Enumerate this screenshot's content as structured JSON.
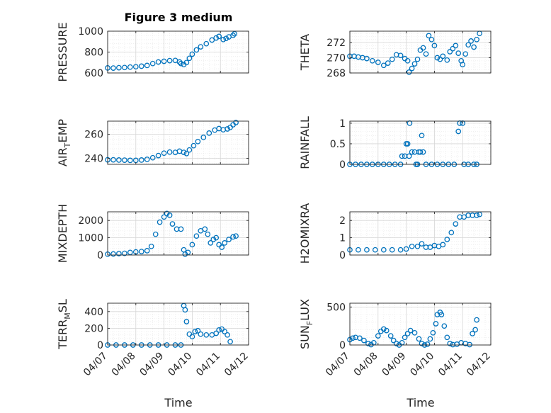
{
  "figure": {
    "title": "Figure 3 medium",
    "xlabel": "Time",
    "x_ticks": [
      "04/07",
      "04/08",
      "04/09",
      "04/10",
      "04/11",
      "04/12"
    ]
  },
  "colors": {
    "marker": "#0072BD",
    "axis": "#262626",
    "grid_major": "#d6d6d6",
    "grid_minor": "#e7e7e7"
  },
  "chart_data": [
    {
      "type": "scatter",
      "id": "pressure",
      "ylabel_main": "PRESSURE",
      "ylabel_sub": "",
      "ylabel_tail": "",
      "ylim": [
        600,
        1000
      ],
      "yticks": [
        600,
        800,
        1000
      ],
      "ytick_labels": [
        "600",
        "800",
        "1000"
      ],
      "grid": true,
      "points": [
        [
          7.0,
          648
        ],
        [
          7.2,
          647
        ],
        [
          7.4,
          650
        ],
        [
          7.6,
          652
        ],
        [
          7.8,
          656
        ],
        [
          8.0,
          660
        ],
        [
          8.2,
          665
        ],
        [
          8.4,
          672
        ],
        [
          8.6,
          690
        ],
        [
          8.8,
          705
        ],
        [
          9.0,
          712
        ],
        [
          9.2,
          718
        ],
        [
          9.4,
          720
        ],
        [
          9.55,
          705
        ],
        [
          9.6,
          690
        ],
        [
          9.7,
          680
        ],
        [
          9.8,
          700
        ],
        [
          9.9,
          740
        ],
        [
          10.0,
          780
        ],
        [
          10.15,
          820
        ],
        [
          10.3,
          850
        ],
        [
          10.5,
          880
        ],
        [
          10.7,
          915
        ],
        [
          10.85,
          935
        ],
        [
          10.95,
          950
        ],
        [
          11.1,
          920
        ],
        [
          11.2,
          930
        ],
        [
          11.3,
          945
        ],
        [
          11.45,
          960
        ],
        [
          11.5,
          975
        ]
      ]
    },
    {
      "type": "scatter",
      "id": "theta",
      "ylabel_main": "THETA",
      "ylabel_sub": "",
      "ylabel_tail": "",
      "ylim": [
        268,
        273.5
      ],
      "yticks": [
        268,
        270,
        272
      ],
      "ytick_labels": [
        "268",
        "270",
        "272"
      ],
      "grid": true,
      "points": [
        [
          7.0,
          270.2
        ],
        [
          7.15,
          270.2
        ],
        [
          7.3,
          270.1
        ],
        [
          7.45,
          270.0
        ],
        [
          7.6,
          269.9
        ],
        [
          7.8,
          269.6
        ],
        [
          8.0,
          269.4
        ],
        [
          8.2,
          269.0
        ],
        [
          8.35,
          269.3
        ],
        [
          8.5,
          269.8
        ],
        [
          8.65,
          270.4
        ],
        [
          8.8,
          270.3
        ],
        [
          8.95,
          269.9
        ],
        [
          9.05,
          269.6
        ],
        [
          9.1,
          268.1
        ],
        [
          9.2,
          268.6
        ],
        [
          9.3,
          269.2
        ],
        [
          9.4,
          269.8
        ],
        [
          9.5,
          271.0
        ],
        [
          9.6,
          271.3
        ],
        [
          9.7,
          270.5
        ],
        [
          9.8,
          272.9
        ],
        [
          9.9,
          272.4
        ],
        [
          10.0,
          271.6
        ],
        [
          10.1,
          270.0
        ],
        [
          10.2,
          269.8
        ],
        [
          10.3,
          270.2
        ],
        [
          10.45,
          269.7
        ],
        [
          10.55,
          270.8
        ],
        [
          10.65,
          271.2
        ],
        [
          10.75,
          271.6
        ],
        [
          10.85,
          270.6
        ],
        [
          10.95,
          269.6
        ],
        [
          11.0,
          269.1
        ],
        [
          11.1,
          270.5
        ],
        [
          11.2,
          271.7
        ],
        [
          11.3,
          272.2
        ],
        [
          11.4,
          271.4
        ],
        [
          11.5,
          272.4
        ],
        [
          11.6,
          273.2
        ]
      ]
    },
    {
      "type": "scatter",
      "id": "air-temp",
      "ylabel_main": "AIR",
      "ylabel_sub": "T",
      "ylabel_tail": "EMP",
      "ylim": [
        235,
        271
      ],
      "yticks": [
        240,
        260
      ],
      "ytick_labels": [
        "240",
        "260"
      ],
      "grid": true,
      "points": [
        [
          7.0,
          238.8
        ],
        [
          7.2,
          238.8
        ],
        [
          7.4,
          238.6
        ],
        [
          7.6,
          238.5
        ],
        [
          7.8,
          238.3
        ],
        [
          8.0,
          238.3
        ],
        [
          8.2,
          238.6
        ],
        [
          8.4,
          239.2
        ],
        [
          8.6,
          240.5
        ],
        [
          8.8,
          242.3
        ],
        [
          9.0,
          244.3
        ],
        [
          9.2,
          245.2
        ],
        [
          9.4,
          245.0
        ],
        [
          9.55,
          246.0
        ],
        [
          9.7,
          245.0
        ],
        [
          9.8,
          244.0
        ],
        [
          9.9,
          247.0
        ],
        [
          10.05,
          250.5
        ],
        [
          10.2,
          254.0
        ],
        [
          10.4,
          257.5
        ],
        [
          10.6,
          261.0
        ],
        [
          10.8,
          263.5
        ],
        [
          10.95,
          264.8
        ],
        [
          11.1,
          263.8
        ],
        [
          11.25,
          264.5
        ],
        [
          11.35,
          265.8
        ],
        [
          11.45,
          268.0
        ],
        [
          11.55,
          269.8
        ]
      ]
    },
    {
      "type": "scatter",
      "id": "rainfall",
      "ylabel_main": "RAINFALL",
      "ylabel_sub": "",
      "ylabel_tail": "",
      "ylim": [
        0,
        1.05
      ],
      "yticks": [
        0,
        0.5,
        1
      ],
      "ytick_labels": [
        "0",
        "0.5",
        "1"
      ],
      "grid": true,
      "points": [
        [
          7.0,
          0
        ],
        [
          7.2,
          0
        ],
        [
          7.4,
          0
        ],
        [
          7.6,
          0
        ],
        [
          7.8,
          0
        ],
        [
          8.0,
          0
        ],
        [
          8.2,
          0
        ],
        [
          8.4,
          0
        ],
        [
          8.6,
          0
        ],
        [
          8.8,
          0
        ],
        [
          8.85,
          0.2
        ],
        [
          8.95,
          0.2
        ],
        [
          9.0,
          0.5
        ],
        [
          9.05,
          0.5
        ],
        [
          9.1,
          0.2
        ],
        [
          9.12,
          1.0
        ],
        [
          9.2,
          0.3
        ],
        [
          9.3,
          0.3
        ],
        [
          9.35,
          0.0
        ],
        [
          9.4,
          0.0
        ],
        [
          9.45,
          0.3
        ],
        [
          9.5,
          0.3
        ],
        [
          9.55,
          0.7
        ],
        [
          9.6,
          0.3
        ],
        [
          9.7,
          0
        ],
        [
          9.9,
          0
        ],
        [
          10.1,
          0
        ],
        [
          10.3,
          0
        ],
        [
          10.5,
          0
        ],
        [
          10.7,
          0
        ],
        [
          10.85,
          0.8
        ],
        [
          10.9,
          1.0
        ],
        [
          11.0,
          1.0
        ],
        [
          11.05,
          0
        ],
        [
          11.2,
          0
        ],
        [
          11.4,
          0
        ],
        [
          11.5,
          0
        ]
      ]
    },
    {
      "type": "scatter",
      "id": "mixdepth",
      "ylabel_main": "MIXDEPTH",
      "ylabel_sub": "",
      "ylabel_tail": "",
      "ylim": [
        0,
        2500
      ],
      "yticks": [
        0,
        1000,
        2000
      ],
      "ytick_labels": [
        "0",
        "1000",
        "2000"
      ],
      "grid": true,
      "points": [
        [
          7.0,
          50
        ],
        [
          7.2,
          60
        ],
        [
          7.4,
          80
        ],
        [
          7.6,
          100
        ],
        [
          7.8,
          150
        ],
        [
          8.0,
          180
        ],
        [
          8.2,
          200
        ],
        [
          8.4,
          250
        ],
        [
          8.55,
          500
        ],
        [
          8.7,
          1200
        ],
        [
          8.85,
          1900
        ],
        [
          9.0,
          2200
        ],
        [
          9.1,
          2400
        ],
        [
          9.2,
          2300
        ],
        [
          9.3,
          1800
        ],
        [
          9.45,
          1500
        ],
        [
          9.6,
          1500
        ],
        [
          9.7,
          300
        ],
        [
          9.75,
          50
        ],
        [
          9.85,
          150
        ],
        [
          10.0,
          600
        ],
        [
          10.15,
          1100
        ],
        [
          10.3,
          1400
        ],
        [
          10.45,
          1500
        ],
        [
          10.55,
          1200
        ],
        [
          10.65,
          700
        ],
        [
          10.75,
          900
        ],
        [
          10.85,
          1000
        ],
        [
          10.95,
          600
        ],
        [
          11.05,
          450
        ],
        [
          11.15,
          700
        ],
        [
          11.3,
          900
        ],
        [
          11.45,
          1050
        ],
        [
          11.55,
          1100
        ]
      ]
    },
    {
      "type": "scatter",
      "id": "h2omixra",
      "ylabel_main": "H2OMIXRA",
      "ylabel_sub": "",
      "ylabel_tail": "",
      "ylim": [
        0,
        2.5
      ],
      "yticks": [
        0,
        1,
        2
      ],
      "ytick_labels": [
        "0",
        "1",
        "2"
      ],
      "grid": true,
      "points": [
        [
          7.0,
          0.3
        ],
        [
          7.3,
          0.3
        ],
        [
          7.6,
          0.3
        ],
        [
          7.9,
          0.3
        ],
        [
          8.2,
          0.3
        ],
        [
          8.5,
          0.3
        ],
        [
          8.8,
          0.3
        ],
        [
          9.0,
          0.35
        ],
        [
          9.2,
          0.5
        ],
        [
          9.4,
          0.5
        ],
        [
          9.55,
          0.65
        ],
        [
          9.7,
          0.45
        ],
        [
          9.85,
          0.45
        ],
        [
          10.0,
          0.55
        ],
        [
          10.15,
          0.5
        ],
        [
          10.3,
          0.6
        ],
        [
          10.45,
          0.9
        ],
        [
          10.6,
          1.3
        ],
        [
          10.75,
          1.8
        ],
        [
          10.9,
          2.2
        ],
        [
          11.05,
          2.2
        ],
        [
          11.2,
          2.3
        ],
        [
          11.35,
          2.3
        ],
        [
          11.5,
          2.3
        ],
        [
          11.6,
          2.35
        ]
      ]
    },
    {
      "type": "scatter",
      "id": "terr-msl",
      "ylabel_main": "TERR",
      "ylabel_sub": "M",
      "ylabel_tail": "SL",
      "ylim": [
        0,
        500
      ],
      "yticks": [
        0,
        200,
        400
      ],
      "ytick_labels": [
        "0",
        "200",
        "400"
      ],
      "grid": true,
      "points": [
        [
          7.0,
          0
        ],
        [
          7.3,
          0
        ],
        [
          7.6,
          0
        ],
        [
          7.9,
          0
        ],
        [
          8.2,
          0
        ],
        [
          8.5,
          0
        ],
        [
          8.8,
          0
        ],
        [
          9.1,
          0
        ],
        [
          9.4,
          0
        ],
        [
          9.6,
          0
        ],
        [
          9.7,
          470
        ],
        [
          9.75,
          420
        ],
        [
          9.8,
          280
        ],
        [
          9.9,
          130
        ],
        [
          10.0,
          100
        ],
        [
          10.1,
          160
        ],
        [
          10.2,
          170
        ],
        [
          10.3,
          130
        ],
        [
          10.5,
          120
        ],
        [
          10.7,
          120
        ],
        [
          10.85,
          140
        ],
        [
          10.95,
          180
        ],
        [
          11.05,
          190
        ],
        [
          11.15,
          160
        ],
        [
          11.25,
          120
        ],
        [
          11.35,
          40
        ]
      ]
    },
    {
      "type": "scatter",
      "id": "sun-flux",
      "ylabel_main": "SUN",
      "ylabel_sub": "F",
      "ylabel_tail": "LUX",
      "ylim": [
        0,
        550
      ],
      "yticks": [
        0,
        500
      ],
      "ytick_labels": [
        "0",
        "500"
      ],
      "grid": true,
      "points": [
        [
          7.0,
          70
        ],
        [
          7.1,
          90
        ],
        [
          7.2,
          100
        ],
        [
          7.35,
          90
        ],
        [
          7.5,
          60
        ],
        [
          7.65,
          20
        ],
        [
          7.75,
          5
        ],
        [
          7.85,
          30
        ],
        [
          8.0,
          120
        ],
        [
          8.1,
          180
        ],
        [
          8.2,
          210
        ],
        [
          8.3,
          190
        ],
        [
          8.45,
          120
        ],
        [
          8.55,
          60
        ],
        [
          8.65,
          20
        ],
        [
          8.75,
          0
        ],
        [
          8.85,
          30
        ],
        [
          8.95,
          100
        ],
        [
          9.05,
          150
        ],
        [
          9.15,
          190
        ],
        [
          9.3,
          160
        ],
        [
          9.45,
          80
        ],
        [
          9.55,
          20
        ],
        [
          9.65,
          0
        ],
        [
          9.75,
          10
        ],
        [
          9.85,
          80
        ],
        [
          9.95,
          160
        ],
        [
          10.05,
          280
        ],
        [
          10.1,
          400
        ],
        [
          10.2,
          430
        ],
        [
          10.25,
          400
        ],
        [
          10.35,
          250
        ],
        [
          10.45,
          100
        ],
        [
          10.55,
          20
        ],
        [
          10.65,
          5
        ],
        [
          10.8,
          10
        ],
        [
          10.95,
          30
        ],
        [
          11.1,
          20
        ],
        [
          11.25,
          5
        ],
        [
          11.35,
          150
        ],
        [
          11.45,
          200
        ],
        [
          11.5,
          330
        ]
      ]
    }
  ]
}
